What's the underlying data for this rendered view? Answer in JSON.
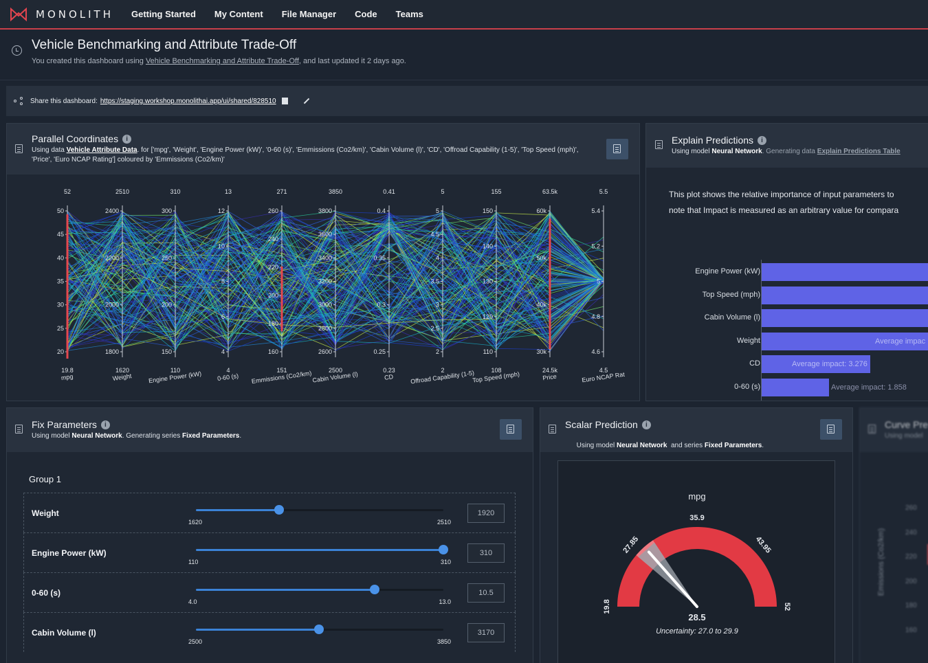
{
  "nav": {
    "brand": "MONOLITH",
    "links": [
      "Getting Started",
      "My Content",
      "File Manager",
      "Code",
      "Teams"
    ]
  },
  "header": {
    "title": "Vehicle Benchmarking and Attribute Trade-Off",
    "sub_prefix": "You created this dashboard using ",
    "sub_link": "Vehicle Benchmarking and Attribute Trade-Off",
    "sub_suffix": ", and last updated it 2 days ago."
  },
  "share": {
    "label": "Share this dashboard:",
    "url": "https://staging.workshop.monolithai.app/ui/shared/828510"
  },
  "parallel": {
    "title": "Parallel Coordinates",
    "desc_prefix": "Using data ",
    "desc_data": "Vehicle Attribute Data",
    "desc_suffix": ". for ['mpg', 'Weight', 'Engine Power (kW)', '0-60 (s)', 'Emmissions (Co2/km)', 'Cabin Volume (l)', 'CD', 'Offroad Capability (1-5)', 'Top Speed (mph)', 'Price', 'Euro NCAP Rating'] coloured by 'Emmissions (Co2/km)'",
    "axes": [
      {
        "name": "mpg",
        "top": "52",
        "bottom": "19.8",
        "ticks": [
          "50",
          "45",
          "40",
          "35",
          "30",
          "25",
          "20"
        ]
      },
      {
        "name": "Weight",
        "top": "2510",
        "bottom": "1620",
        "ticks": [
          "2400",
          "2200",
          "2000",
          "1800"
        ]
      },
      {
        "name": "Engine Power (kW)",
        "top": "310",
        "bottom": "110",
        "ticks": [
          "300",
          "250",
          "200",
          "150"
        ]
      },
      {
        "name": "0-60 (s)",
        "top": "13",
        "bottom": "4",
        "ticks": [
          "12",
          "10",
          "8",
          "6",
          "4"
        ]
      },
      {
        "name": "Emmissions (Co2/km)",
        "top": "271",
        "bottom": "151",
        "ticks": [
          "260",
          "240",
          "220",
          "200",
          "180",
          "160"
        ]
      },
      {
        "name": "Cabin Volume (l)",
        "top": "3850",
        "bottom": "2500",
        "ticks": [
          "3800",
          "3600",
          "3400",
          "3200",
          "3000",
          "2800",
          "2600"
        ]
      },
      {
        "name": "CD",
        "top": "0.41",
        "bottom": "0.23",
        "ticks": [
          "0.4",
          "0.35",
          "0.3",
          "0.25"
        ]
      },
      {
        "name": "Offroad Capability (1-5)",
        "top": "5",
        "bottom": "2",
        "ticks": [
          "5",
          "4.5",
          "4",
          "3.5",
          "3",
          "2.5",
          "2"
        ]
      },
      {
        "name": "Top Speed (mph)",
        "top": "155",
        "bottom": "108",
        "ticks": [
          "150",
          "140",
          "130",
          "120",
          "110"
        ]
      },
      {
        "name": "Price",
        "top": "63.5k",
        "bottom": "24.5k",
        "ticks": [
          "60k",
          "50k",
          "40k",
          "30k"
        ]
      },
      {
        "name": "Euro NCAP Rat",
        "top": "5.5",
        "bottom": "4.5",
        "ticks": [
          "5.4",
          "5.2",
          "5",
          "4.8",
          "4.6"
        ]
      }
    ]
  },
  "explain": {
    "title": "Explain Predictions",
    "desc_prefix": "Using model ",
    "desc_model": "Neural Network",
    "desc_mid": ". Generating data ",
    "desc_data": "Explain Predictions Table",
    "text_line1": "This plot shows the relative importance of input parameters to",
    "text_line2": "note that Impact is measured as an arbitrary value for compara",
    "bars": [
      {
        "label": "Engine Power (kW)",
        "value": 1.0,
        "text": ""
      },
      {
        "label": "Top Speed (mph)",
        "value": 1.0,
        "text": ""
      },
      {
        "label": "Cabin Volume (l)",
        "value": 1.0,
        "text": ""
      },
      {
        "label": "Weight",
        "value": 1.0,
        "text": "Average impac"
      },
      {
        "label": "CD",
        "value": 3.276,
        "text": "Average impact: 3.276"
      },
      {
        "label": "0-60 (s)",
        "value": 1.858,
        "text": "Average impact: 1.858"
      }
    ]
  },
  "fix": {
    "title": "Fix Parameters",
    "desc_prefix": "Using model ",
    "desc_model": "Neural Network",
    "desc_mid": ". Generating series ",
    "desc_series": "Fixed Parameters",
    "group": "Group 1",
    "params": [
      {
        "name": "Weight",
        "min": "1620",
        "max": "2510",
        "value": "1920",
        "fraction": 0.337
      },
      {
        "name": "Engine Power (kW)",
        "min": "110",
        "max": "310",
        "value": "310",
        "fraction": 1.0
      },
      {
        "name": "0-60 (s)",
        "min": "4.0",
        "max": "13.0",
        "value": "10.5",
        "fraction": 0.722
      },
      {
        "name": "Cabin Volume (l)",
        "min": "2500",
        "max": "3850",
        "value": "3170",
        "fraction": 0.496
      }
    ]
  },
  "scalar": {
    "title": "Scalar Prediction",
    "desc_prefix": "Using model ",
    "desc_model": "Neural Network",
    "desc_mid": "  and series ",
    "desc_series": "Fixed Parameters",
    "gauge_title": "mpg",
    "min": "19.8",
    "max": "52",
    "tick_left": "27.85",
    "tick_top": "35.9",
    "tick_right": "43.95",
    "value": "28.5",
    "uncertainty": "Uncertainty: 27.0 to 29.9",
    "value_num": 28.5,
    "range": [
      19.8,
      52
    ],
    "band": [
      27.0,
      29.9
    ],
    "colors": {
      "gauge": "#e23a44",
      "band": "#ef7b83",
      "needle": "#ffffff"
    }
  },
  "curve": {
    "title": "Curve Pre",
    "desc": "Using model",
    "ylabel": "Emissions (Co2/km)",
    "ticks": [
      "260",
      "240",
      "220",
      "200",
      "180",
      "160"
    ]
  }
}
